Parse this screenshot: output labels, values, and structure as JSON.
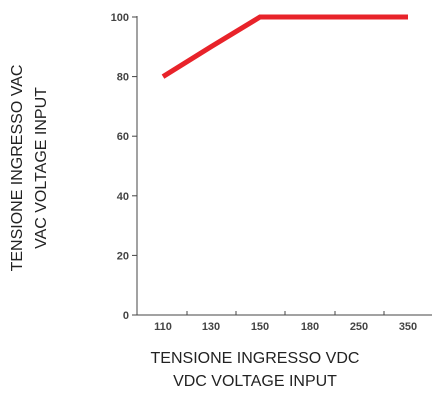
{
  "chart_data": {
    "type": "line",
    "categories": [
      "110",
      "130",
      "150",
      "180",
      "250",
      "350"
    ],
    "series": [
      {
        "values": [
          80,
          90,
          100,
          100,
          100,
          100
        ],
        "color": "#e8232a"
      }
    ],
    "xlabel": [
      "TENSIONE INGRESSO VDC",
      "VDC VOLTAGE INPUT"
    ],
    "ylabel": [
      "TENSIONE INGRESSO VAC",
      "VAC VOLTAGE INPUT"
    ],
    "ylim": [
      0,
      100
    ],
    "yticks": [
      0,
      20,
      40,
      60,
      80,
      100
    ],
    "grid": false,
    "legend": "none"
  }
}
